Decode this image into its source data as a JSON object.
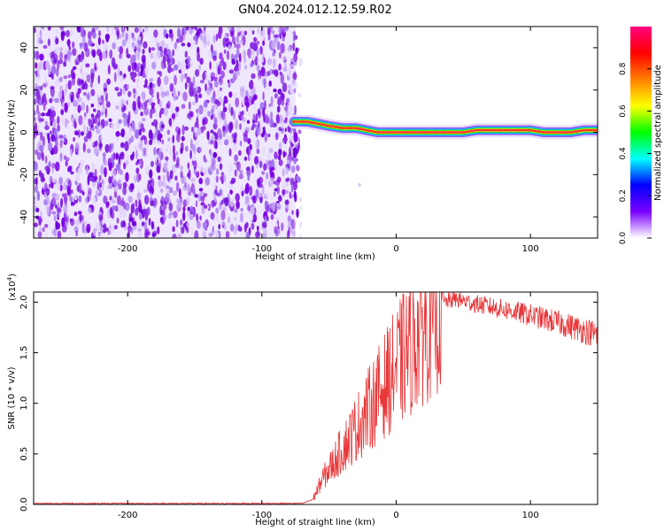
{
  "title": "GN04.2024.012.12.59.R02",
  "chart_data": [
    {
      "type": "heatmap",
      "xlabel": "Height of straight line (km)",
      "ylabel": "Frequency (Hz)",
      "xlim": [
        -270,
        150
      ],
      "ylim": [
        -50,
        50
      ],
      "x_ticks": [
        -200,
        -100,
        0,
        100
      ],
      "y_ticks": [
        -40,
        -20,
        0,
        20,
        40
      ],
      "noise_region": {
        "x_range": [
          -270,
          -75
        ],
        "y_range": [
          -50,
          50
        ],
        "note_color": "#7a00e6"
      },
      "ridge": {
        "x": [
          -76,
          -72,
          -66,
          -58,
          -50,
          -40,
          -30,
          -22,
          -14,
          -5,
          0,
          10,
          20,
          30,
          40,
          50,
          60,
          70,
          80,
          90,
          100,
          110,
          120,
          130,
          140,
          150
        ],
        "y": [
          5,
          5,
          5,
          4,
          3,
          2,
          2,
          1,
          0,
          0,
          0,
          0,
          0,
          0,
          0,
          0,
          1,
          1,
          1,
          1,
          1,
          0,
          0,
          0,
          1,
          1
        ]
      },
      "colorbar": {
        "label": "Normalized spectral amplitude",
        "range": [
          0,
          1
        ],
        "ticks": [
          "0.0",
          "0.2",
          "0.4",
          "0.6",
          "0.8"
        ],
        "colors": [
          "#ffffff",
          "#7a00ff",
          "#0000ff",
          "#00ffff",
          "#00ff00",
          "#ffff00",
          "#ff8000",
          "#ff0000",
          "#ff0080"
        ]
      }
    },
    {
      "type": "line",
      "xlabel": "Height of straight line (km)",
      "ylabel": "SNR (10 * v/v)",
      "multiplier_label": "(x10",
      "multiplier_exp": "4",
      "xlim": [
        -270,
        150
      ],
      "ylim": [
        0,
        2.1
      ],
      "x_ticks": [
        -200,
        -100,
        0,
        100
      ],
      "y_ticks": [
        "0.0",
        "0.5",
        "1.0",
        "1.5",
        "2.0"
      ],
      "color": "#e8383a",
      "envelope": {
        "x": [
          -270,
          -150,
          -100,
          -70,
          -62,
          -55,
          -45,
          -35,
          -25,
          -15,
          -5,
          5,
          15,
          25,
          35,
          45,
          60,
          80,
          100,
          120,
          140,
          150
        ],
        "y": [
          0.01,
          0.01,
          0.01,
          0.01,
          0.05,
          0.25,
          0.45,
          0.65,
          0.85,
          1.05,
          1.25,
          1.45,
          1.65,
          1.85,
          2.0,
          2.03,
          1.98,
          1.93,
          1.87,
          1.8,
          1.72,
          1.68
        ]
      }
    }
  ]
}
